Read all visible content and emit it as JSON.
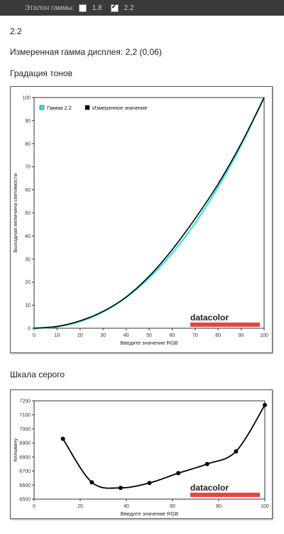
{
  "topbar": {
    "label": "Эталон гаммы:",
    "options": [
      {
        "label": "1.8",
        "checked": false
      },
      {
        "label": "2.2",
        "checked": true
      }
    ]
  },
  "selected_gamma": "2.2",
  "measured_text": "Измеренная гамма дисплея: 2,2 (0,06)",
  "section_tone": "Градация тонов",
  "section_gray": "Шкала серого",
  "logo_text": "datacolor",
  "colors": {
    "gamma": "#33e6e6",
    "measured": "#000000",
    "logo_bar": "#e8463c"
  },
  "chart_data": [
    {
      "type": "line",
      "xlabel": "Введите значение RGB",
      "ylabel": "Выходная величина светимости",
      "xlim": [
        0,
        100
      ],
      "ylim": [
        0,
        100
      ],
      "xticks": [
        0,
        10,
        20,
        30,
        40,
        50,
        60,
        70,
        80,
        90,
        100
      ],
      "yticks": [
        0,
        10,
        20,
        30,
        40,
        50,
        60,
        70,
        80,
        90,
        100
      ],
      "grid": false,
      "legend": "top-left",
      "series": [
        {
          "name": "Гамма 2.2",
          "color": "#33e6e6",
          "x": [
            0,
            10,
            20,
            30,
            40,
            50,
            60,
            70,
            80,
            90,
            100
          ],
          "y": [
            0,
            0.6,
            2.9,
            7.1,
            13.3,
            21.8,
            32.5,
            45.6,
            61.2,
            79.3,
            100
          ]
        },
        {
          "name": "Измеренное значение",
          "color": "#000000",
          "x": [
            0,
            10,
            20,
            30,
            40,
            50,
            60,
            70,
            80,
            90,
            100
          ],
          "y": [
            0,
            0.8,
            3.2,
            7.3,
            13.5,
            22.5,
            34.0,
            47.5,
            62.5,
            80.0,
            100
          ]
        }
      ]
    },
    {
      "type": "line",
      "xlabel": "Введите значение RGB",
      "ylabel": "Кельвину",
      "xlim": [
        0,
        100
      ],
      "ylim": [
        6500,
        7200
      ],
      "xticks": [
        0,
        20,
        40,
        60,
        80,
        100
      ],
      "yticks": [
        6500,
        6600,
        6700,
        6800,
        6900,
        7000,
        7100,
        7200
      ],
      "grid": false,
      "series": [
        {
          "color": "#000000",
          "x": [
            12.5,
            25,
            37.5,
            50,
            62.5,
            75,
            87.5,
            100
          ],
          "y": [
            6930,
            6620,
            6580,
            6615,
            6685,
            6750,
            6840,
            7170
          ]
        }
      ]
    }
  ]
}
